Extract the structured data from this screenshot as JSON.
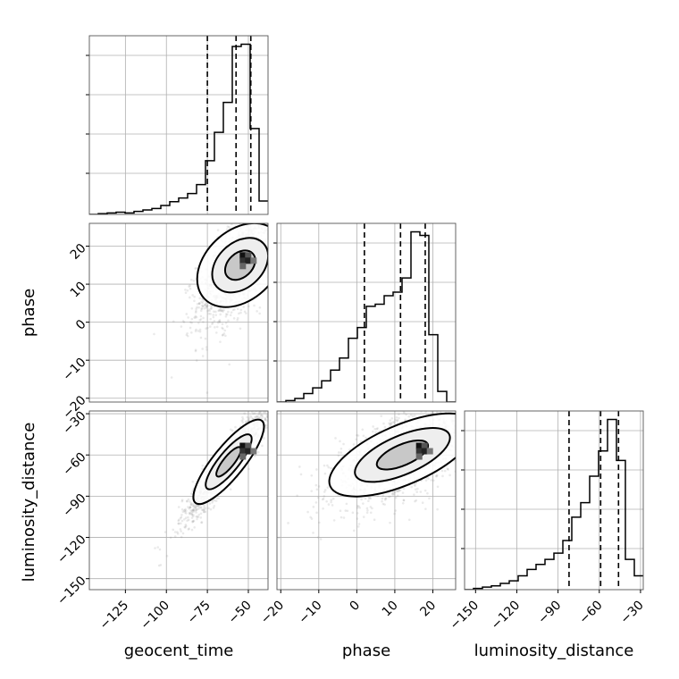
{
  "chart_data": {
    "type": "corner",
    "parameters": [
      "geocent_time",
      "phase",
      "luminosity_distance"
    ],
    "ranges": {
      "geocent_time": [
        -147,
        -38
      ],
      "phase": [
        -21,
        26
      ],
      "luminosity_distance": [
        -158,
        -28
      ]
    },
    "ticks": {
      "geocent_time": [
        -125,
        -100,
        -75,
        -50
      ],
      "phase": [
        -20,
        -10,
        0,
        10,
        20
      ],
      "luminosity_distance": [
        -150,
        -120,
        -90,
        -60,
        -30
      ]
    },
    "histograms": [
      {
        "parameter": "geocent_time",
        "bin_edges": [
          -147,
          -141.55,
          -136.1,
          -130.65,
          -125.2,
          -119.75,
          -114.3,
          -108.85,
          -103.4,
          -97.95,
          -92.5,
          -87.05,
          -81.6,
          -76.15,
          -70.7,
          -65.25,
          -59.8,
          -54.35,
          -48.9,
          -43.45,
          -38
        ],
        "counts": [
          0,
          1,
          2,
          3,
          2,
          4,
          6,
          8,
          12,
          17,
          22,
          28,
          40,
          72,
          110,
          150,
          225,
          228,
          115,
          18
        ],
        "quantiles": [
          -75,
          -57.5,
          -48.5
        ]
      },
      {
        "parameter": "phase",
        "bin_edges": [
          -21,
          -18.65,
          -16.3,
          -13.95,
          -11.6,
          -9.25,
          -6.9,
          -4.55,
          -2.2,
          0.15,
          2.5,
          4.85,
          7.2,
          9.55,
          11.9,
          14.25,
          16.6,
          18.95,
          21.3,
          23.65,
          26
        ],
        "counts": [
          0,
          2,
          5,
          12,
          20,
          30,
          45,
          62,
          90,
          105,
          135,
          138,
          150,
          155,
          175,
          240,
          235,
          95,
          15,
          0
        ],
        "quantiles": [
          2,
          11.5,
          18
        ]
      },
      {
        "parameter": "luminosity_distance",
        "bin_edges": [
          -158,
          -151.5,
          -145,
          -138.5,
          -132,
          -125.5,
          -119,
          -112.5,
          -106,
          -99.5,
          -93,
          -86.5,
          -80,
          -73.5,
          -67,
          -60.5,
          -54,
          -47.5,
          -41,
          -34.5,
          -28
        ],
        "counts": [
          0,
          2,
          4,
          6,
          10,
          14,
          22,
          32,
          40,
          48,
          58,
          78,
          115,
          138,
          180,
          220,
          270,
          205,
          48,
          22
        ],
        "quantiles": [
          -82,
          -59,
          -46
        ]
      }
    ],
    "pairs": [
      {
        "x": "geocent_time",
        "y": "phase",
        "center": [
          -55,
          15
        ],
        "spread": [
          13,
          8
        ],
        "correlation": 0.65,
        "peak": [
          -52,
          17
        ]
      },
      {
        "x": "geocent_time",
        "y": "luminosity_distance",
        "center": [
          -62,
          -65
        ],
        "spread": [
          14,
          22
        ],
        "correlation": 0.94,
        "peak": [
          -52,
          -55
        ]
      },
      {
        "x": "phase",
        "y": "luminosity_distance",
        "center": [
          12,
          -60
        ],
        "spread": [
          9,
          18
        ],
        "correlation": 0.6,
        "peak": [
          17,
          -55
        ]
      }
    ],
    "grid": true,
    "legend": "none"
  }
}
